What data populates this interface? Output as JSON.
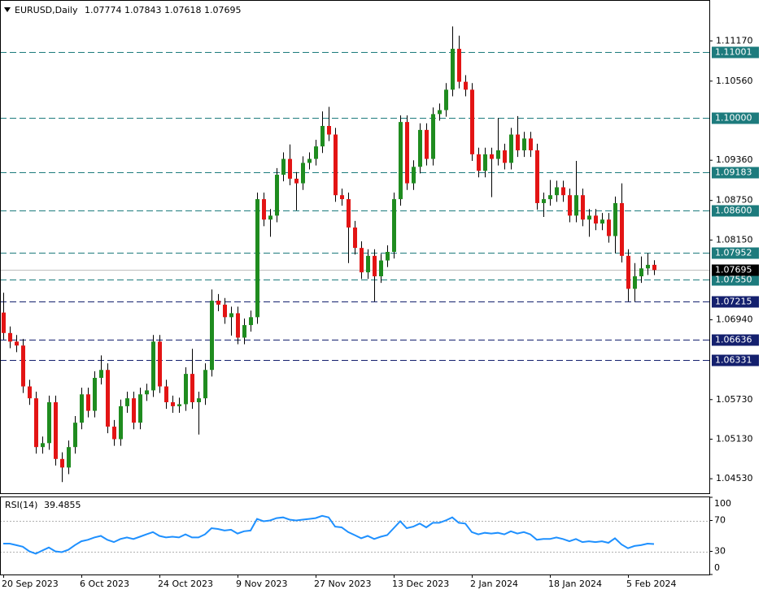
{
  "chart_data": {
    "type": "candlestick",
    "title": "EURUSD,Daily",
    "categories": [
      "20 Sep 2023",
      null,
      null,
      null,
      null,
      null,
      null,
      null,
      null,
      null,
      null,
      null,
      "6 Oct 2023",
      null,
      null,
      null,
      null,
      null,
      null,
      null,
      null,
      null,
      null,
      null,
      "24 Oct 2023",
      null,
      null,
      null,
      null,
      null,
      null,
      null,
      null,
      null,
      null,
      null,
      "9 Nov 2023",
      null,
      null,
      null,
      null,
      null,
      null,
      null,
      null,
      null,
      null,
      null,
      "27 Nov 2023",
      null,
      null,
      null,
      null,
      null,
      null,
      null,
      null,
      null,
      null,
      null,
      "13 Dec 2023",
      null,
      null,
      null,
      null,
      null,
      null,
      null,
      null,
      null,
      null,
      null,
      "2 Jan 2024",
      null,
      null,
      null,
      null,
      null,
      null,
      null,
      null,
      null,
      null,
      null,
      "18 Jan 2024",
      null,
      null,
      null,
      null,
      null,
      null,
      null,
      null,
      null,
      null,
      null,
      "5 Feb 2024",
      null,
      null,
      null,
      null
    ],
    "open": [
      1.0705,
      1.0674,
      1.0661,
      1.0655,
      1.0593,
      1.0575,
      1.0501,
      1.0507,
      1.0569,
      1.0483,
      1.047,
      1.0501,
      1.0538,
      1.0581,
      1.0556,
      1.0606,
      1.0618,
      1.0532,
      1.0513,
      1.0563,
      1.0575,
      1.0538,
      1.0581,
      1.0587,
      1.0661,
      1.0593,
      1.0569,
      1.0563,
      1.0566,
      1.0612,
      1.0569,
      1.0575,
      1.0618,
      1.0723,
      1.0717,
      1.0698,
      1.0704,
      1.0667,
      1.0686,
      1.0698,
      1.0877,
      1.0846,
      1.0852,
      1.0914,
      1.0938,
      1.0908,
      1.0901,
      1.0932,
      1.0938,
      1.0957,
      1.0988,
      1.0975,
      1.0883,
      1.0877,
      1.0834,
      1.0803,
      1.0766,
      1.0791,
      1.076,
      1.0784,
      1.0797,
      1.0877,
      1.0994,
      1.0901,
      1.0926,
      1.0982,
      1.0938,
      1.1006,
      1.1012,
      1.1043,
      1.1105,
      1.1055,
      1.1043,
      1.0945,
      1.092,
      1.0945,
      1.0938,
      1.0951,
      1.0932,
      1.0975,
      1.0951,
      1.0969,
      1.0951,
      1.0871,
      1.0877,
      1.0883,
      1.0895,
      1.0883,
      1.0852,
      1.0883,
      1.0846,
      1.0852,
      1.084,
      1.0846,
      1.0821,
      1.0871,
      1.0791,
      1.0741,
      1.076,
      1.0772,
      1.07774
    ],
    "high": [
      1.0735,
      1.0684,
      1.0671,
      1.0665,
      1.0603,
      1.0585,
      1.0517,
      1.0579,
      1.0579,
      1.0493,
      1.0511,
      1.0548,
      1.0591,
      1.0591,
      1.0616,
      1.064,
      1.0628,
      1.0542,
      1.0573,
      1.0585,
      1.0585,
      1.0591,
      1.0597,
      1.0671,
      1.0671,
      1.0603,
      1.0579,
      1.0576,
      1.0622,
      1.065,
      1.0585,
      1.0628,
      1.074,
      1.0733,
      1.0727,
      1.0714,
      1.0714,
      1.0696,
      1.0708,
      1.0887,
      1.0887,
      1.0862,
      1.0924,
      1.0948,
      1.096,
      1.0918,
      1.0942,
      1.0948,
      1.0967,
      1.101,
      1.1017,
      1.0985,
      1.0893,
      1.0887,
      1.0844,
      1.0813,
      1.0801,
      1.0801,
      1.0794,
      1.0807,
      1.0887,
      1.1004,
      1.1004,
      1.0936,
      1.0992,
      1.0992,
      1.1016,
      1.1022,
      1.1053,
      1.1139,
      1.1125,
      1.1065,
      1.1053,
      1.0955,
      1.0955,
      1.0955,
      1.1,
      1.0961,
      1.0985,
      1.1003,
      1.0979,
      1.0979,
      1.0961,
      1.0887,
      1.0906,
      1.0905,
      1.0905,
      1.0893,
      1.0935,
      1.0893,
      1.0862,
      1.0862,
      1.0856,
      1.0856,
      1.0881,
      1.0901,
      1.0801,
      1.078,
      1.079,
      1.0795,
      1.07843
    ],
    "low": [
      1.0664,
      1.0651,
      1.0645,
      1.0583,
      1.0565,
      1.0491,
      1.0491,
      1.0497,
      1.0473,
      1.0448,
      1.046,
      1.0491,
      1.0528,
      1.0546,
      1.0546,
      1.0596,
      1.0522,
      1.0503,
      1.0503,
      1.0553,
      1.0528,
      1.0528,
      1.0571,
      1.0577,
      1.0583,
      1.0559,
      1.0553,
      1.0553,
      1.0556,
      1.0559,
      1.052,
      1.0565,
      1.0608,
      1.0707,
      1.0688,
      1.067,
      1.0657,
      1.0657,
      1.0676,
      1.0688,
      1.0836,
      1.082,
      1.0842,
      1.0904,
      1.0898,
      1.086,
      1.0891,
      1.0922,
      1.0928,
      1.0947,
      1.0965,
      1.0873,
      1.0867,
      1.078,
      1.0793,
      1.0756,
      1.0756,
      1.0722,
      1.075,
      1.0774,
      1.0787,
      1.0867,
      1.0891,
      1.0891,
      1.0916,
      1.0928,
      1.0928,
      1.0996,
      1.1002,
      1.1033,
      1.1045,
      1.1033,
      1.0935,
      1.091,
      1.091,
      1.088,
      1.0928,
      1.0922,
      1.0922,
      1.0941,
      1.0941,
      1.0941,
      1.0861,
      1.085,
      1.0867,
      1.0873,
      1.0873,
      1.0842,
      1.0842,
      1.0836,
      1.082,
      1.083,
      1.083,
      1.0811,
      1.0795,
      1.0781,
      1.0722,
      1.0722,
      1.075,
      1.0762,
      1.07618
    ],
    "close": [
      1.0674,
      1.0661,
      1.0655,
      1.0593,
      1.0575,
      1.0501,
      1.0507,
      1.0569,
      1.0483,
      1.047,
      1.0501,
      1.0538,
      1.0581,
      1.0556,
      1.0606,
      1.0618,
      1.0532,
      1.0513,
      1.0563,
      1.0575,
      1.0538,
      1.0581,
      1.0587,
      1.0661,
      1.0593,
      1.0569,
      1.0563,
      1.0566,
      1.0612,
      1.0569,
      1.0575,
      1.0618,
      1.0723,
      1.0717,
      1.0698,
      1.0704,
      1.0667,
      1.0686,
      1.0698,
      1.0877,
      1.0846,
      1.0852,
      1.0914,
      1.0938,
      1.0908,
      1.0901,
      1.0932,
      1.0938,
      1.0957,
      1.0988,
      1.0975,
      1.0883,
      1.0877,
      1.0834,
      1.0803,
      1.0766,
      1.0791,
      1.076,
      1.0784,
      1.0797,
      1.0877,
      1.0994,
      1.0901,
      1.0926,
      1.0982,
      1.0938,
      1.1006,
      1.1012,
      1.1043,
      1.1105,
      1.1055,
      1.1043,
      1.0945,
      1.092,
      1.0945,
      1.0938,
      1.0951,
      1.0932,
      1.0975,
      1.0951,
      1.0969,
      1.0951,
      1.0871,
      1.0877,
      1.0883,
      1.0895,
      1.0883,
      1.0852,
      1.0883,
      1.0846,
      1.0852,
      1.084,
      1.0846,
      1.0821,
      1.0871,
      1.0791,
      1.0741,
      1.076,
      1.0772,
      1.07774,
      1.07695
    ],
    "up_color": "#1f8c1f",
    "down_color": "#e31414",
    "ylim": [
      1.0431,
      1.1179
    ],
    "yticks": [
      {
        "value": 1.0453,
        "label": "1.04530"
      },
      {
        "value": 1.0513,
        "label": "1.05130"
      },
      {
        "value": 1.0573,
        "label": "1.05730"
      },
      {
        "value": 1.0694,
        "label": "1.06940"
      },
      {
        "value": 1.0815,
        "label": "1.08150"
      },
      {
        "value": 1.0875,
        "label": "1.08750"
      },
      {
        "value": 1.0936,
        "label": "1.09360"
      },
      {
        "value": 1.1056,
        "label": "1.10560"
      },
      {
        "value": 1.1117,
        "label": "1.11170"
      }
    ],
    "levels": [
      {
        "value": 1.11001,
        "color": "#1d7b7d"
      },
      {
        "value": 1.1,
        "label": "1.10000",
        "color": "#1d7b7d"
      },
      {
        "value": 1.09183,
        "color": "#1d7b7d"
      },
      {
        "value": 1.086,
        "label": "1.08600",
        "color": "#1d7b7d"
      },
      {
        "value": 1.07952,
        "color": "#1d7b7d"
      },
      {
        "value": 1.0755,
        "label": "1.07550",
        "color": "#1d7b7d"
      },
      {
        "value": 1.07215,
        "color": "#14206e"
      },
      {
        "value": 1.06636,
        "color": "#14206e"
      },
      {
        "value": 1.06331,
        "color": "#14206e"
      }
    ],
    "rsi": {
      "title": "RSI(14)",
      "color": "#1e90ff",
      "ylim": [
        0,
        100
      ],
      "yticks": [
        0,
        30,
        70,
        100
      ],
      "levels": [
        30,
        70
      ],
      "values": [
        40,
        40,
        38,
        36,
        30,
        27,
        31,
        35,
        30,
        29,
        32,
        38,
        43,
        45,
        48,
        50,
        45,
        42,
        46,
        48,
        46,
        49,
        52,
        55,
        50,
        48,
        49,
        48,
        52,
        48,
        48,
        52,
        60,
        59,
        57,
        58,
        53,
        56,
        57,
        72,
        69,
        70,
        73,
        74,
        71,
        70,
        71,
        72,
        73,
        76,
        74,
        62,
        61,
        55,
        51,
        47,
        50,
        46,
        49,
        51,
        60,
        69,
        60,
        62,
        66,
        61,
        67,
        67,
        70,
        74,
        67,
        66,
        55,
        52,
        54,
        53,
        54,
        52,
        56,
        53,
        55,
        52,
        45,
        46,
        46,
        48,
        46,
        43,
        46,
        42,
        43,
        42,
        43,
        41,
        47,
        39,
        34,
        37,
        38,
        40,
        39.4855
      ]
    }
  }
}
